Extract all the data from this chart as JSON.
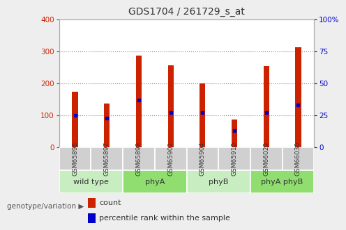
{
  "title": "GDS1704 / 261729_s_at",
  "samples": [
    "GSM65896",
    "GSM65897",
    "GSM65898",
    "GSM65902",
    "GSM65904",
    "GSM65910",
    "GSM66029",
    "GSM66030"
  ],
  "counts": [
    175,
    138,
    287,
    257,
    200,
    87,
    255,
    312
  ],
  "percentiles": [
    25,
    23,
    37,
    27,
    27,
    13,
    27,
    33
  ],
  "groups": [
    {
      "label": "wild type",
      "start": 0,
      "end": 2,
      "color": "#c8edc0"
    },
    {
      "label": "phyA",
      "start": 2,
      "end": 4,
      "color": "#90dd70"
    },
    {
      "label": "phyB",
      "start": 4,
      "end": 6,
      "color": "#c8edc0"
    },
    {
      "label": "phyA phyB",
      "start": 6,
      "end": 8,
      "color": "#90dd70"
    }
  ],
  "bar_color": "#cc2200",
  "dot_color": "#0000cc",
  "left_ylim": [
    0,
    400
  ],
  "right_ylim": [
    0,
    100
  ],
  "left_yticks": [
    0,
    100,
    200,
    300,
    400
  ],
  "right_yticks": [
    0,
    25,
    50,
    75,
    100
  ],
  "right_yticklabels": [
    "0",
    "25",
    "50",
    "75",
    "100%"
  ],
  "grid_yticks": [
    100,
    200,
    300
  ],
  "bg_color": "#eeeeee",
  "plot_bg": "#ffffff",
  "tick_label_color_left": "#cc2200",
  "tick_label_color_right": "#0000cc",
  "legend_count_label": "count",
  "legend_percentile_label": "percentile rank within the sample",
  "genotype_label": "genotype/variation"
}
